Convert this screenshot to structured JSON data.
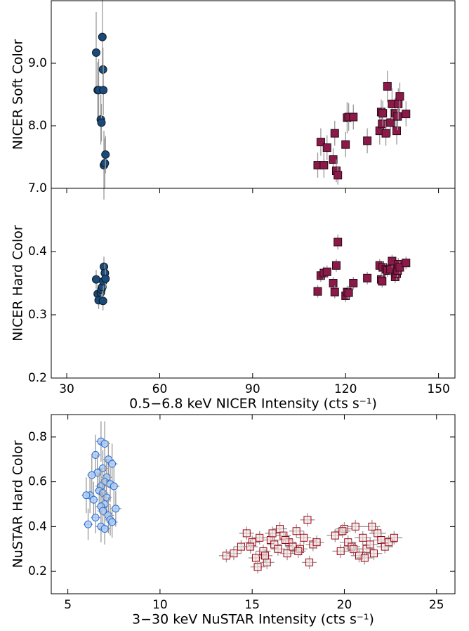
{
  "chart_data": [
    {
      "type": "scatter",
      "ylabel": "NICER Soft Color",
      "xlim": [
        25,
        155.3
      ],
      "ylim": [
        7,
        10
      ],
      "yticks": [
        {
          "value": 7,
          "label": "7.0"
        },
        {
          "value": 8,
          "label": "8.0"
        },
        {
          "value": 9,
          "label": "9.0"
        }
      ],
      "series": [
        {
          "color": "#1b4a78",
          "marker": "circle",
          "x": [
            39.5,
            40,
            40.3,
            41,
            41.2,
            41.5,
            41.7,
            41.8,
            42,
            42.3,
            42.5
          ],
          "values": [
            9.17,
            8.57,
            8.57,
            8.1,
            8.05,
            9.42,
            8.9,
            8.57,
            7.37,
            7.4,
            7.54
          ],
          "errors": [
            0.65,
            0.45,
            0.5,
            0.4,
            0.3,
            0.6,
            0.35,
            0.4,
            0.55,
            0.4,
            0.3
          ]
        },
        {
          "color": "#8b1a4a",
          "marker": "square",
          "x": [
            111,
            112,
            113,
            114,
            116,
            116.5,
            117,
            117.5,
            120,
            120.5,
            121,
            122.5,
            127,
            131,
            131.5,
            131.8,
            132,
            133,
            133.5,
            134.5,
            135,
            136,
            136.5,
            136.8,
            137,
            137.5,
            139.5
          ],
          "values": [
            7.37,
            7.74,
            7.37,
            7.65,
            7.46,
            7.88,
            7.28,
            7.21,
            7.7,
            8.13,
            8.14,
            8.14,
            7.76,
            7.92,
            8.22,
            8.03,
            8.2,
            7.88,
            8.63,
            8.05,
            8.35,
            8.2,
            7.92,
            8.15,
            8.35,
            8.47,
            8.19
          ],
          "errors": [
            0.2,
            0.22,
            0.2,
            0.2,
            0.18,
            0.2,
            0.18,
            0.15,
            0.2,
            0.25,
            0.22,
            0.2,
            0.2,
            0.22,
            0.2,
            0.22,
            0.2,
            0.2,
            0.25,
            0.22,
            0.25,
            0.25,
            0.22,
            0.22,
            0.25,
            0.22,
            0.2
          ]
        }
      ]
    },
    {
      "type": "scatter",
      "ylabel": "NICER Hard Color",
      "xlabel": "0.5−6.8 keV NICER Intensity (cts s⁻¹)",
      "xlim": [
        25,
        155.3
      ],
      "ylim": [
        0.2,
        0.5
      ],
      "xticks": [
        30,
        60,
        90,
        120,
        150
      ],
      "yticks": [
        0.2,
        0.3,
        0.4
      ],
      "series": [
        {
          "color": "#1b4a78",
          "marker": "circle",
          "x": [
            39.5,
            40,
            40.3,
            41,
            41.2,
            41.5,
            41.7,
            41.8,
            42,
            42.3,
            42.5
          ],
          "values": [
            0.356,
            0.333,
            0.323,
            0.335,
            0.34,
            0.344,
            0.322,
            0.353,
            0.376,
            0.366,
            0.357
          ],
          "errors": [
            0.015,
            0.015,
            0.014,
            0.015,
            0.014,
            0.015,
            0.015,
            0.015,
            0.016,
            0.015,
            0.015
          ]
        },
        {
          "color": "#8b1a4a",
          "marker": "square",
          "x": [
            111,
            112,
            113,
            114,
            116,
            116.5,
            117,
            117.5,
            120,
            120.5,
            121,
            122.5,
            127,
            131,
            131.5,
            131.8,
            132,
            133,
            133.5,
            134.5,
            135,
            136,
            136.5,
            136.8,
            137,
            137.5,
            139.5
          ],
          "values": [
            0.337,
            0.362,
            0.366,
            0.368,
            0.35,
            0.336,
            0.378,
            0.415,
            0.33,
            0.336,
            0.335,
            0.35,
            0.358,
            0.378,
            0.356,
            0.353,
            0.375,
            0.372,
            0.37,
            0.372,
            0.385,
            0.36,
            0.365,
            0.37,
            0.38,
            0.375,
            0.382
          ],
          "errors": [
            0.01,
            0.01,
            0.01,
            0.01,
            0.01,
            0.01,
            0.01,
            0.012,
            0.01,
            0.01,
            0.01,
            0.01,
            0.01,
            0.01,
            0.01,
            0.01,
            0.01,
            0.01,
            0.01,
            0.01,
            0.01,
            0.01,
            0.01,
            0.01,
            0.01,
            0.01,
            0.01
          ]
        }
      ]
    },
    {
      "type": "scatter",
      "ylabel": "NuSTAR Hard Color",
      "xlabel": "3−30 keV NuSTAR Intensity (cts s⁻¹)",
      "xlim": [
        4.1,
        26
      ],
      "ylim": [
        0.1,
        0.9
      ],
      "xticks": [
        5,
        10,
        15,
        20,
        25
      ],
      "yticks": [
        0.2,
        0.4,
        0.6,
        0.8
      ],
      "series": [
        {
          "color": "#1f6fe0",
          "fill": "#b3cdf2",
          "marker": "open-circle",
          "x": [
            6.8,
            7.0,
            6.5,
            7.2,
            6.9,
            7.4,
            6.6,
            7.1,
            6.3,
            7.0,
            6.8,
            7.3,
            6.7,
            7.5,
            6.9,
            6.2,
            7.1,
            6.4,
            7.0,
            6.8,
            7.6,
            6.9,
            6.0,
            7.2,
            6.5,
            7.3,
            6.1,
            7.4,
            6.8,
            7.0
          ],
          "values": [
            0.78,
            0.77,
            0.72,
            0.7,
            0.66,
            0.68,
            0.64,
            0.62,
            0.63,
            0.6,
            0.58,
            0.59,
            0.56,
            0.58,
            0.55,
            0.54,
            0.53,
            0.52,
            0.5,
            0.49,
            0.48,
            0.47,
            0.54,
            0.45,
            0.44,
            0.43,
            0.41,
            0.42,
            0.4,
            0.39
          ],
          "errors": [
            0.09,
            0.1,
            0.09,
            0.08,
            0.08,
            0.09,
            0.08,
            0.08,
            0.09,
            0.08,
            0.08,
            0.08,
            0.08,
            0.09,
            0.08,
            0.08,
            0.08,
            0.08,
            0.08,
            0.08,
            0.08,
            0.08,
            0.08,
            0.08,
            0.07,
            0.07,
            0.07,
            0.07,
            0.07,
            0.07
          ],
          "xerrors": [
            0.3,
            0.3,
            0.25,
            0.3,
            0.3,
            0.3,
            0.25,
            0.3,
            0.25,
            0.3,
            0.3,
            0.3,
            0.25,
            0.3,
            0.3,
            0.25,
            0.3,
            0.25,
            0.3,
            0.3,
            0.3,
            0.3,
            0.25,
            0.3,
            0.25,
            0.3,
            0.25,
            0.3,
            0.3,
            0.3
          ]
        },
        {
          "color": "#a00010",
          "fill": "#f3e3e3",
          "marker": "open-square",
          "x": [
            13.6,
            14.0,
            14.4,
            14.7,
            15.0,
            15.2,
            15.4,
            15.6,
            15.8,
            16.0,
            16.2,
            16.4,
            16.5,
            16.7,
            16.9,
            17.0,
            17.2,
            17.4,
            17.6,
            17.8,
            18.0,
            18.1,
            18.3,
            15.3,
            16.1,
            16.8,
            17.5,
            14.9,
            15.7,
            18.5,
            19.5,
            19.8,
            20.0,
            20.2,
            20.4,
            20.6,
            20.8,
            21.0,
            21.2,
            21.4,
            21.6,
            21.8,
            22.0,
            22.2,
            22.4,
            22.7,
            20.5,
            21.1,
            19.9,
            21.5
          ],
          "values": [
            0.27,
            0.28,
            0.31,
            0.37,
            0.33,
            0.26,
            0.35,
            0.29,
            0.24,
            0.34,
            0.32,
            0.3,
            0.39,
            0.36,
            0.28,
            0.33,
            0.31,
            0.38,
            0.3,
            0.35,
            0.43,
            0.24,
            0.32,
            0.22,
            0.37,
            0.34,
            0.29,
            0.31,
            0.27,
            0.33,
            0.36,
            0.29,
            0.39,
            0.33,
            0.31,
            0.4,
            0.27,
            0.35,
            0.3,
            0.32,
            0.28,
            0.37,
            0.34,
            0.31,
            0.33,
            0.35,
            0.3,
            0.26,
            0.38,
            0.4
          ],
          "errors": [
            0.03,
            0.03,
            0.03,
            0.03,
            0.03,
            0.03,
            0.03,
            0.03,
            0.03,
            0.03,
            0.03,
            0.03,
            0.03,
            0.03,
            0.03,
            0.03,
            0.03,
            0.03,
            0.03,
            0.03,
            0.03,
            0.03,
            0.03,
            0.03,
            0.03,
            0.03,
            0.03,
            0.03,
            0.03,
            0.03,
            0.03,
            0.03,
            0.03,
            0.03,
            0.03,
            0.03,
            0.03,
            0.03,
            0.03,
            0.03,
            0.03,
            0.03,
            0.03,
            0.03,
            0.03,
            0.03,
            0.03,
            0.03,
            0.03,
            0.03
          ],
          "xerrors": [
            0.4,
            0.4,
            0.4,
            0.4,
            0.4,
            0.4,
            0.4,
            0.4,
            0.4,
            0.4,
            0.4,
            0.4,
            0.4,
            0.4,
            0.4,
            0.4,
            0.4,
            0.4,
            0.4,
            0.4,
            0.4,
            0.4,
            0.4,
            0.4,
            0.4,
            0.4,
            0.4,
            0.4,
            0.4,
            0.4,
            0.45,
            0.45,
            0.45,
            0.45,
            0.45,
            0.45,
            0.45,
            0.45,
            0.45,
            0.45,
            0.45,
            0.45,
            0.45,
            0.45,
            0.45,
            0.45,
            0.45,
            0.45,
            0.45,
            0.45
          ]
        }
      ]
    }
  ]
}
